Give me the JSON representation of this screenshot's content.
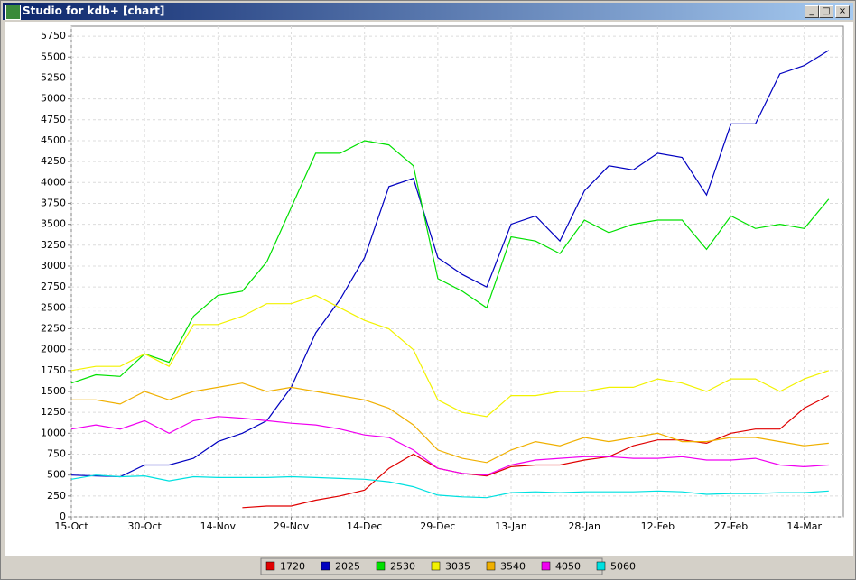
{
  "window": {
    "title": "Studio for kdb+ [chart]"
  },
  "chart_data": {
    "type": "line",
    "x": [
      0,
      5,
      10,
      15,
      20,
      25,
      30,
      35,
      40,
      45,
      50,
      55,
      60,
      65,
      70,
      75,
      80,
      85,
      90,
      95,
      100,
      105,
      110,
      115,
      120,
      125,
      130,
      135,
      140,
      145,
      150,
      155
    ],
    "xlim": [
      0,
      158
    ],
    "xticks": [
      {
        "value": 0,
        "label": "15-Oct"
      },
      {
        "value": 15,
        "label": "30-Oct"
      },
      {
        "value": 30,
        "label": "14-Nov"
      },
      {
        "value": 45,
        "label": "29-Nov"
      },
      {
        "value": 60,
        "label": "14-Dec"
      },
      {
        "value": 75,
        "label": "29-Dec"
      },
      {
        "value": 90,
        "label": "13-Jan"
      },
      {
        "value": 105,
        "label": "28-Jan"
      },
      {
        "value": 120,
        "label": "12-Feb"
      },
      {
        "value": 135,
        "label": "27-Feb"
      },
      {
        "value": 150,
        "label": "14-Mar"
      }
    ],
    "ylim": [
      0,
      5870
    ],
    "yticks": [
      0,
      250,
      500,
      750,
      1000,
      1250,
      1500,
      1750,
      2000,
      2250,
      2500,
      2750,
      3000,
      3250,
      3500,
      3750,
      4000,
      4250,
      4500,
      4750,
      5000,
      5250,
      5500,
      5750
    ],
    "grid": true,
    "legend": "bottom",
    "series": [
      {
        "name": "1720",
        "color": "#e00000",
        "values": [
          null,
          null,
          null,
          null,
          null,
          null,
          null,
          110,
          130,
          130,
          200,
          250,
          320,
          580,
          750,
          580,
          520,
          490,
          600,
          620,
          620,
          680,
          720,
          850,
          920,
          920,
          880,
          1000,
          1050,
          1050,
          1300,
          1450
        ]
      },
      {
        "name": "2025",
        "color": "#0000c0",
        "values": [
          500,
          490,
          480,
          620,
          620,
          700,
          900,
          1000,
          1150,
          1550,
          2200,
          2600,
          3100,
          3950,
          4050,
          3100,
          2900,
          2750,
          3500,
          3600,
          3300,
          3900,
          4200,
          4150,
          4350,
          4300,
          3850,
          4700,
          4700,
          5300,
          5400,
          5580
        ]
      },
      {
        "name": "2530",
        "color": "#00e000",
        "values": [
          1600,
          1700,
          1680,
          1950,
          1850,
          2400,
          2650,
          2700,
          3050,
          3700,
          4350,
          4350,
          4500,
          4450,
          4200,
          2850,
          2700,
          2500,
          3350,
          3300,
          3150,
          3550,
          3400,
          3500,
          3550,
          3550,
          3200,
          3600,
          3450,
          3500,
          3450,
          3800
        ]
      },
      {
        "name": "3035",
        "color": "#f2f200",
        "values": [
          1750,
          1800,
          1800,
          1950,
          1800,
          2300,
          2300,
          2400,
          2550,
          2550,
          2650,
          2500,
          2350,
          2250,
          2000,
          1400,
          1250,
          1200,
          1450,
          1450,
          1500,
          1500,
          1550,
          1550,
          1650,
          1600,
          1500,
          1650,
          1650,
          1500,
          1650,
          1750
        ]
      },
      {
        "name": "3540",
        "color": "#f0b000",
        "values": [
          1400,
          1400,
          1350,
          1500,
          1400,
          1500,
          1550,
          1600,
          1500,
          1550,
          1500,
          1450,
          1400,
          1300,
          1100,
          800,
          700,
          650,
          800,
          900,
          850,
          950,
          900,
          950,
          1000,
          900,
          900,
          950,
          950,
          900,
          850,
          880
        ]
      },
      {
        "name": "4050",
        "color": "#f000f0",
        "values": [
          1050,
          1100,
          1050,
          1150,
          1000,
          1150,
          1200,
          1180,
          1150,
          1120,
          1100,
          1050,
          980,
          950,
          800,
          580,
          520,
          500,
          620,
          680,
          700,
          720,
          720,
          700,
          700,
          720,
          680,
          680,
          700,
          620,
          600,
          620
        ]
      },
      {
        "name": "5060",
        "color": "#00e0e0",
        "values": [
          450,
          500,
          480,
          490,
          430,
          480,
          470,
          470,
          470,
          480,
          470,
          460,
          450,
          420,
          360,
          260,
          240,
          230,
          290,
          300,
          290,
          300,
          300,
          300,
          310,
          300,
          270,
          280,
          280,
          290,
          290,
          310
        ]
      }
    ]
  }
}
